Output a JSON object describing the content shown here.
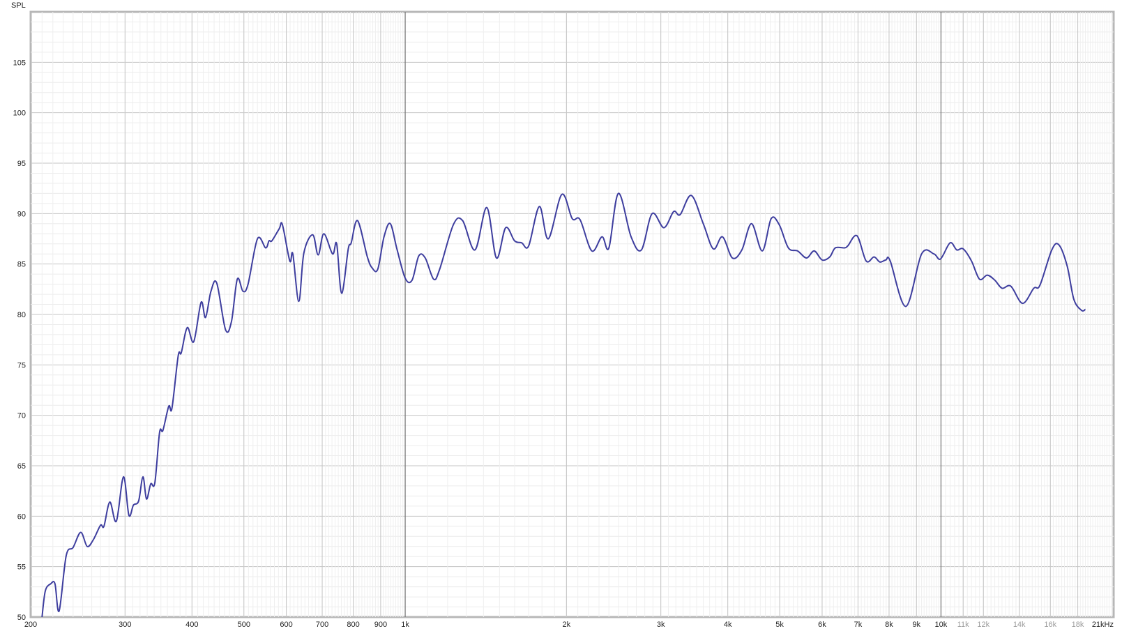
{
  "chart_data": {
    "type": "line",
    "ylabel": "SPL",
    "xlim": [
      200,
      21000
    ],
    "ylim": [
      50,
      110
    ],
    "x_scale": "log",
    "grid": true,
    "line_color": "#3d3d9e",
    "y_ticks": [
      {
        "value": 50,
        "label": "50"
      },
      {
        "value": 55,
        "label": "55"
      },
      {
        "value": 60,
        "label": "60"
      },
      {
        "value": 65,
        "label": "65"
      },
      {
        "value": 70,
        "label": "70"
      },
      {
        "value": 75,
        "label": "75"
      },
      {
        "value": 80,
        "label": "80"
      },
      {
        "value": 85,
        "label": "85"
      },
      {
        "value": 90,
        "label": "90"
      },
      {
        "value": 95,
        "label": "95"
      },
      {
        "value": 100,
        "label": "100"
      },
      {
        "value": 105,
        "label": "105"
      }
    ],
    "x_ticks": [
      {
        "value": 200,
        "label": "200",
        "style": "normal"
      },
      {
        "value": 300,
        "label": "300",
        "style": "normal"
      },
      {
        "value": 400,
        "label": "400",
        "style": "normal"
      },
      {
        "value": 500,
        "label": "500",
        "style": "normal"
      },
      {
        "value": 600,
        "label": "600",
        "style": "normal"
      },
      {
        "value": 700,
        "label": "700",
        "style": "normal"
      },
      {
        "value": 800,
        "label": "800",
        "style": "normal"
      },
      {
        "value": 900,
        "label": "900",
        "style": "normal"
      },
      {
        "value": 1000,
        "label": "1k",
        "style": "normal"
      },
      {
        "value": 2000,
        "label": "2k",
        "style": "normal"
      },
      {
        "value": 3000,
        "label": "3k",
        "style": "normal"
      },
      {
        "value": 4000,
        "label": "4k",
        "style": "normal"
      },
      {
        "value": 5000,
        "label": "5k",
        "style": "normal"
      },
      {
        "value": 6000,
        "label": "6k",
        "style": "normal"
      },
      {
        "value": 7000,
        "label": "7k",
        "style": "normal"
      },
      {
        "value": 8000,
        "label": "8k",
        "style": "normal"
      },
      {
        "value": 9000,
        "label": "9k",
        "style": "normal"
      },
      {
        "value": 10000,
        "label": "10k",
        "style": "normal"
      },
      {
        "value": 11000,
        "label": "11k",
        "style": "minor"
      },
      {
        "value": 12000,
        "label": "12k",
        "style": "minor"
      },
      {
        "value": 14000,
        "label": "14k",
        "style": "minor"
      },
      {
        "value": 16000,
        "label": "16k",
        "style": "minor"
      },
      {
        "value": 18000,
        "label": "18k",
        "style": "minor"
      },
      {
        "value": 21000,
        "label": "21kHz",
        "style": "normal"
      }
    ],
    "series": [
      {
        "points": [
          [
            210,
            50.0
          ],
          [
            213,
            52.6
          ],
          [
            218,
            53.3
          ],
          [
            222,
            53.3
          ],
          [
            226,
            50.6
          ],
          [
            233,
            56.1
          ],
          [
            240,
            56.9
          ],
          [
            248,
            58.4
          ],
          [
            255,
            57.0
          ],
          [
            262,
            57.7
          ],
          [
            270,
            59.1
          ],
          [
            274,
            59.0
          ],
          [
            281,
            61.4
          ],
          [
            289,
            59.5
          ],
          [
            298,
            63.9
          ],
          [
            305,
            60.1
          ],
          [
            311,
            61.1
          ],
          [
            318,
            61.5
          ],
          [
            324,
            63.9
          ],
          [
            329,
            61.7
          ],
          [
            335,
            63.2
          ],
          [
            341,
            63.3
          ],
          [
            348,
            68.3
          ],
          [
            353,
            68.5
          ],
          [
            362,
            70.9
          ],
          [
            367,
            70.7
          ],
          [
            377,
            75.9
          ],
          [
            382,
            76.2
          ],
          [
            392,
            78.7
          ],
          [
            403,
            77.3
          ],
          [
            416,
            81.2
          ],
          [
            424,
            79.7
          ],
          [
            434,
            82.3
          ],
          [
            445,
            83.1
          ],
          [
            462,
            78.5
          ],
          [
            474,
            79.3
          ],
          [
            486,
            83.5
          ],
          [
            498,
            82.3
          ],
          [
            509,
            83.0
          ],
          [
            530,
            87.5
          ],
          [
            549,
            86.6
          ],
          [
            557,
            87.3
          ],
          [
            564,
            87.3
          ],
          [
            582,
            88.5
          ],
          [
            590,
            88.9
          ],
          [
            609,
            85.3
          ],
          [
            617,
            86.0
          ],
          [
            633,
            81.3
          ],
          [
            647,
            86.1
          ],
          [
            672,
            87.9
          ],
          [
            688,
            85.9
          ],
          [
            705,
            88.0
          ],
          [
            732,
            86.0
          ],
          [
            745,
            87.0
          ],
          [
            761,
            82.1
          ],
          [
            783,
            86.5
          ],
          [
            793,
            87.1
          ],
          [
            815,
            89.3
          ],
          [
            850,
            85.7
          ],
          [
            868,
            84.6
          ],
          [
            889,
            84.5
          ],
          [
            913,
            87.7
          ],
          [
            938,
            89.0
          ],
          [
            965,
            86.5
          ],
          [
            1000,
            83.6
          ],
          [
            1030,
            83.4
          ],
          [
            1060,
            85.8
          ],
          [
            1090,
            85.6
          ],
          [
            1130,
            83.5
          ],
          [
            1160,
            84.5
          ],
          [
            1230,
            88.9
          ],
          [
            1280,
            89.3
          ],
          [
            1350,
            86.4
          ],
          [
            1420,
            90.6
          ],
          [
            1480,
            85.6
          ],
          [
            1540,
            88.6
          ],
          [
            1600,
            87.3
          ],
          [
            1650,
            87.1
          ],
          [
            1700,
            86.8
          ],
          [
            1780,
            90.7
          ],
          [
            1850,
            87.5
          ],
          [
            1960,
            91.9
          ],
          [
            2050,
            89.5
          ],
          [
            2120,
            89.4
          ],
          [
            2230,
            86.3
          ],
          [
            2330,
            87.7
          ],
          [
            2400,
            86.6
          ],
          [
            2500,
            92.0
          ],
          [
            2640,
            87.7
          ],
          [
            2760,
            86.4
          ],
          [
            2890,
            90.0
          ],
          [
            3040,
            88.6
          ],
          [
            3170,
            90.2
          ],
          [
            3260,
            89.9
          ],
          [
            3420,
            91.8
          ],
          [
            3600,
            89.0
          ],
          [
            3760,
            86.5
          ],
          [
            3910,
            87.7
          ],
          [
            4080,
            85.6
          ],
          [
            4250,
            86.4
          ],
          [
            4430,
            89.0
          ],
          [
            4640,
            86.3
          ],
          [
            4820,
            89.5
          ],
          [
            4990,
            88.9
          ],
          [
            5190,
            86.6
          ],
          [
            5400,
            86.3
          ],
          [
            5610,
            85.6
          ],
          [
            5800,
            86.3
          ],
          [
            6000,
            85.4
          ],
          [
            6200,
            85.7
          ],
          [
            6350,
            86.6
          ],
          [
            6600,
            86.6
          ],
          [
            6700,
            86.8
          ],
          [
            6970,
            87.8
          ],
          [
            7250,
            85.3
          ],
          [
            7500,
            85.7
          ],
          [
            7690,
            85.2
          ],
          [
            7890,
            85.4
          ],
          [
            8040,
            85.3
          ],
          [
            8600,
            80.8
          ],
          [
            9200,
            86.0
          ],
          [
            9700,
            86.0
          ],
          [
            9980,
            85.5
          ],
          [
            10400,
            87.1
          ],
          [
            10700,
            86.4
          ],
          [
            11000,
            86.5
          ],
          [
            11400,
            85.3
          ],
          [
            11800,
            83.5
          ],
          [
            12200,
            83.9
          ],
          [
            12600,
            83.4
          ],
          [
            13000,
            82.6
          ],
          [
            13500,
            82.8
          ],
          [
            14200,
            81.1
          ],
          [
            14900,
            82.6
          ],
          [
            15300,
            82.9
          ],
          [
            16100,
            86.4
          ],
          [
            16600,
            86.9
          ],
          [
            17200,
            84.8
          ],
          [
            17700,
            81.5
          ],
          [
            18300,
            80.4
          ],
          [
            18600,
            80.5
          ]
        ]
      }
    ]
  }
}
